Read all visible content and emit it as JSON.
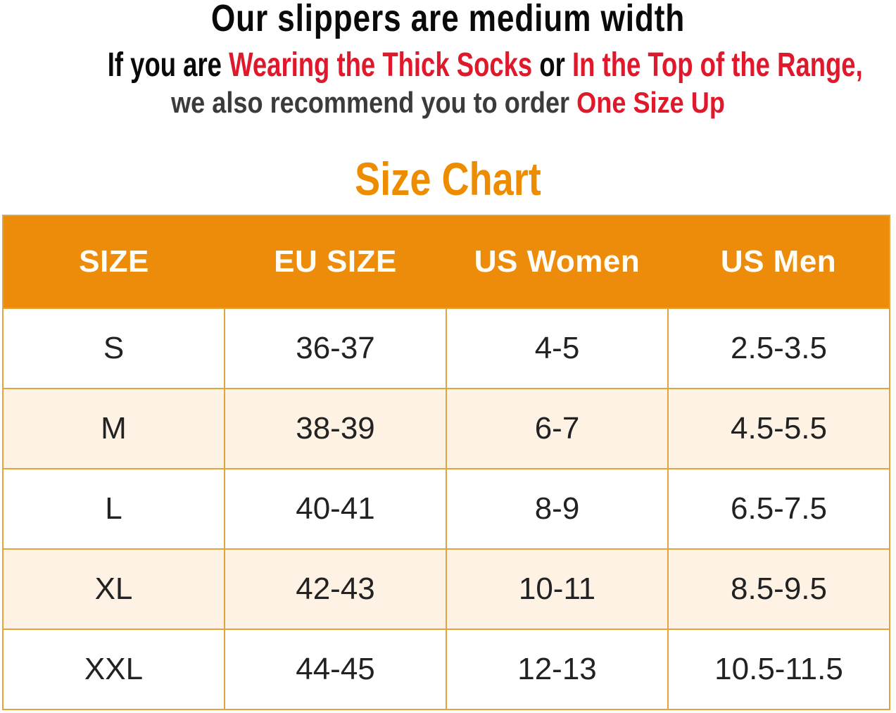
{
  "notice": {
    "headline": "Our slippers are medium width",
    "condition": {
      "prefix": "If you are",
      "highlight1": "Wearing the Thick Socks",
      "connector": "or",
      "highlight2": "In the Top of the Range,"
    },
    "recommendation": {
      "prefix": "we also recommend you to order",
      "highlight": "One Size Up"
    }
  },
  "title": "Size Chart",
  "chart_data": {
    "type": "table",
    "title": "Size Chart",
    "columns": [
      "SIZE",
      "EU SIZE",
      "US Women",
      "US Men"
    ],
    "rows": [
      [
        "S",
        "36-37",
        "4-5",
        "2.5-3.5"
      ],
      [
        "M",
        "38-39",
        "6-7",
        "4.5-5.5"
      ],
      [
        "L",
        "40-41",
        "8-9",
        "6.5-7.5"
      ],
      [
        "XL",
        "42-43",
        "10-11",
        "8.5-9.5"
      ],
      [
        "XXL",
        "44-45",
        "12-13",
        "10.5-11.5"
      ]
    ],
    "layout": {
      "header_background": "#ec8c0a",
      "alternate_row_background": "#fdf2e3",
      "border_color": "#e2a43f",
      "title_color": "#ee8c00",
      "highlight_color": "#e0182b"
    }
  },
  "colors": {
    "orange": "#ec8c0a",
    "title_orange": "#ee8c00",
    "red": "#e0182b",
    "cream": "#fdf2e3",
    "border_gold": "#e2a43f",
    "dark_text": "#3b3b3b"
  }
}
